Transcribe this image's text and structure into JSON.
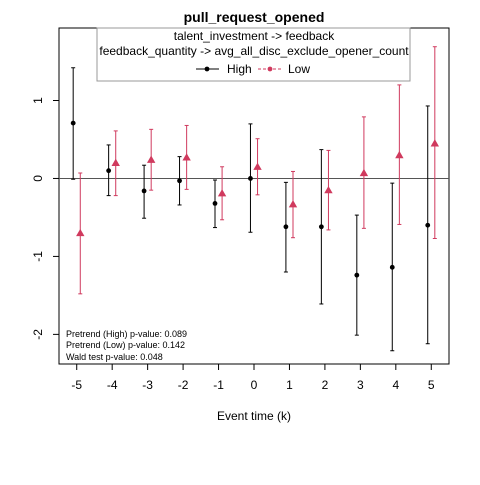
{
  "chart_data": {
    "type": "scatter",
    "title": "pull_request_opened",
    "legend": {
      "position": "top-right",
      "lines": [
        "talent_investment -> feedback",
        "feedback_quantity -> avg_all_disc_exclude_opener_count"
      ]
    },
    "xlabel": "Event time (k)",
    "ylabel": "",
    "x_ticks": [
      -5,
      -4,
      -3,
      -2,
      -1,
      0,
      1,
      2,
      3,
      4,
      5
    ],
    "y_ticks": [
      -2,
      -1,
      0,
      1
    ],
    "xlim": [
      -5.5,
      5.5
    ],
    "ylim": [
      -2.38,
      1.93
    ],
    "reference_line_y": 0,
    "series": [
      {
        "name": "High",
        "color": "#000000",
        "marker": "circle",
        "x": [
          -5,
          -4,
          -3,
          -2,
          -1,
          0,
          1,
          2,
          3,
          4,
          5
        ],
        "y": [
          0.71,
          0.1,
          -0.16,
          -0.03,
          -0.32,
          0.0,
          -0.62,
          -0.62,
          -1.24,
          -1.14,
          -0.6
        ],
        "lower": [
          -0.01,
          -0.22,
          -0.51,
          -0.34,
          -0.63,
          -0.69,
          -1.2,
          -1.61,
          -2.01,
          -2.21,
          -2.12
        ],
        "upper": [
          1.42,
          0.43,
          0.17,
          0.28,
          -0.02,
          0.7,
          -0.05,
          0.37,
          -0.47,
          -0.06,
          0.93
        ]
      },
      {
        "name": "Low",
        "color": "#d03a5e",
        "marker": "triangle",
        "x": [
          -5,
          -4,
          -3,
          -2,
          -1,
          0,
          1,
          2,
          3,
          4,
          5
        ],
        "y": [
          -0.7,
          0.2,
          0.24,
          0.27,
          -0.19,
          0.15,
          -0.33,
          -0.15,
          0.07,
          0.3,
          0.45
        ],
        "lower": [
          -1.48,
          -0.22,
          -0.15,
          -0.14,
          -0.53,
          -0.21,
          -0.76,
          -0.66,
          -0.64,
          -0.59,
          -0.77
        ],
        "upper": [
          0.07,
          0.61,
          0.63,
          0.68,
          0.15,
          0.51,
          0.09,
          0.36,
          0.79,
          1.2,
          1.69
        ]
      }
    ],
    "annotations": [
      "Pretrend (High) p-value: 0.089",
      "Pretrend (Low) p-value: 0.142",
      "Wald test p-value: 0.048"
    ]
  }
}
